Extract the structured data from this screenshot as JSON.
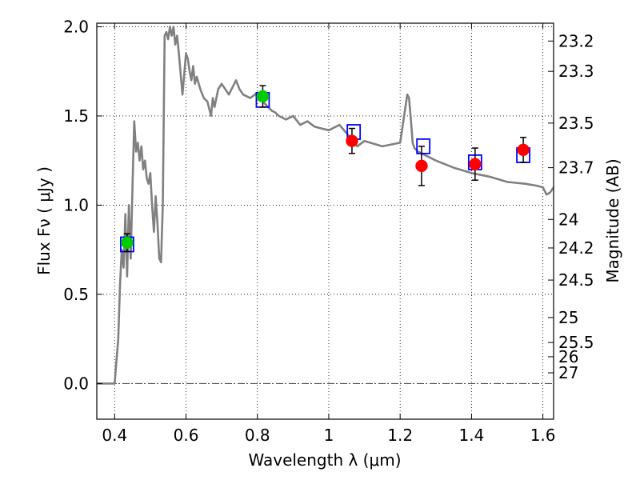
{
  "chart_data": {
    "type": "scatter",
    "xlabel": "Wavelength  λ (μm)",
    "ylabel": "Flux  Fν  ( μJy )",
    "ylabel_right": "Magnitude (AB)",
    "xlim": [
      0.35,
      1.63
    ],
    "ylim": [
      -0.2,
      2.02
    ],
    "grid": true,
    "x_ticks": [
      0.4,
      0.6,
      0.8,
      1.0,
      1.2,
      1.4,
      1.6
    ],
    "x_tick_labels": [
      "0.4",
      "0.6",
      "0.8",
      "1",
      "1.2",
      "1.4",
      "1.6"
    ],
    "y_ticks": [
      0.0,
      0.5,
      1.0,
      1.5,
      2.0
    ],
    "y_tick_labels": [
      "0.0",
      "0.5",
      "1.0",
      "1.5",
      "2.0"
    ],
    "right_ticks": [
      {
        "label": "23.2",
        "flux": 1.92
      },
      {
        "label": "23.3",
        "flux": 1.75
      },
      {
        "label": "23.5",
        "flux": 1.46
      },
      {
        "label": "23.7",
        "flux": 1.21
      },
      {
        "label": "24",
        "flux": 0.92
      },
      {
        "label": "24.2",
        "flux": 0.76
      },
      {
        "label": "24.5",
        "flux": 0.58
      },
      {
        "label": "25",
        "flux": 0.37
      },
      {
        "label": "25.5",
        "flux": 0.23
      },
      {
        "label": "26",
        "flux": 0.15
      },
      {
        "label": "27",
        "flux": 0.06
      }
    ],
    "series": [
      {
        "kind": "model",
        "color": "#808080",
        "x": [
          0.35,
          0.38,
          0.39,
          0.4,
          0.41,
          0.415,
          0.42,
          0.425,
          0.43,
          0.435,
          0.44,
          0.445,
          0.45,
          0.455,
          0.46,
          0.465,
          0.47,
          0.475,
          0.48,
          0.485,
          0.49,
          0.495,
          0.5,
          0.505,
          0.51,
          0.515,
          0.52,
          0.525,
          0.53,
          0.535,
          0.54,
          0.545,
          0.55,
          0.555,
          0.56,
          0.565,
          0.57,
          0.575,
          0.58,
          0.59,
          0.6,
          0.605,
          0.61,
          0.615,
          0.62,
          0.625,
          0.63,
          0.64,
          0.65,
          0.66,
          0.67,
          0.675,
          0.68,
          0.69,
          0.7,
          0.72,
          0.74,
          0.75,
          0.76,
          0.78,
          0.8,
          0.82,
          0.83,
          0.84,
          0.85,
          0.86,
          0.88,
          0.9,
          0.92,
          0.94,
          0.96,
          0.98,
          1.0,
          1.03,
          1.06,
          1.08,
          1.1,
          1.15,
          1.2,
          1.22,
          1.225,
          1.23,
          1.235,
          1.24,
          1.25,
          1.28,
          1.3,
          1.35,
          1.4,
          1.45,
          1.5,
          1.55,
          1.58,
          1.6,
          1.61,
          1.62,
          1.63
        ],
        "y": [
          0.0,
          0.0,
          0.0,
          0.0,
          0.25,
          0.55,
          0.75,
          0.65,
          0.95,
          0.6,
          1.0,
          0.7,
          1.1,
          1.47,
          1.3,
          1.35,
          1.25,
          1.33,
          1.2,
          1.25,
          1.15,
          1.12,
          1.18,
          1.0,
          0.85,
          1.05,
          0.9,
          0.7,
          0.68,
          1.0,
          1.95,
          1.97,
          1.93,
          2.0,
          1.95,
          2.0,
          1.9,
          1.95,
          1.85,
          1.62,
          1.85,
          1.82,
          1.75,
          1.7,
          1.78,
          1.68,
          1.72,
          1.65,
          1.6,
          1.58,
          1.5,
          1.6,
          1.55,
          1.65,
          1.68,
          1.62,
          1.7,
          1.65,
          1.62,
          1.6,
          1.63,
          1.57,
          1.55,
          1.53,
          1.52,
          1.5,
          1.48,
          1.5,
          1.45,
          1.47,
          1.44,
          1.43,
          1.42,
          1.45,
          1.38,
          1.33,
          1.36,
          1.33,
          1.35,
          1.62,
          1.6,
          1.48,
          1.35,
          1.32,
          1.3,
          1.27,
          1.25,
          1.21,
          1.18,
          1.16,
          1.13,
          1.12,
          1.11,
          1.1,
          1.06,
          1.07,
          1.1
        ]
      },
      {
        "kind": "model-photometry",
        "marker": "square",
        "color": "#0000ff",
        "x": [
          0.435,
          0.815,
          1.07,
          1.265,
          1.41,
          1.545
        ],
        "y": [
          0.78,
          1.59,
          1.41,
          1.33,
          1.24,
          1.28
        ]
      },
      {
        "kind": "observed",
        "marker": "circle",
        "color": "#00cc00",
        "x": [
          0.435,
          0.815
        ],
        "y": [
          0.79,
          1.61
        ],
        "err": [
          0.05,
          0.06
        ]
      },
      {
        "kind": "observed",
        "marker": "circle",
        "color": "#ff0000",
        "x": [
          1.065,
          1.26,
          1.41,
          1.545
        ],
        "y": [
          1.36,
          1.22,
          1.23,
          1.31
        ],
        "err": [
          0.07,
          0.11,
          0.09,
          0.07
        ]
      }
    ]
  }
}
